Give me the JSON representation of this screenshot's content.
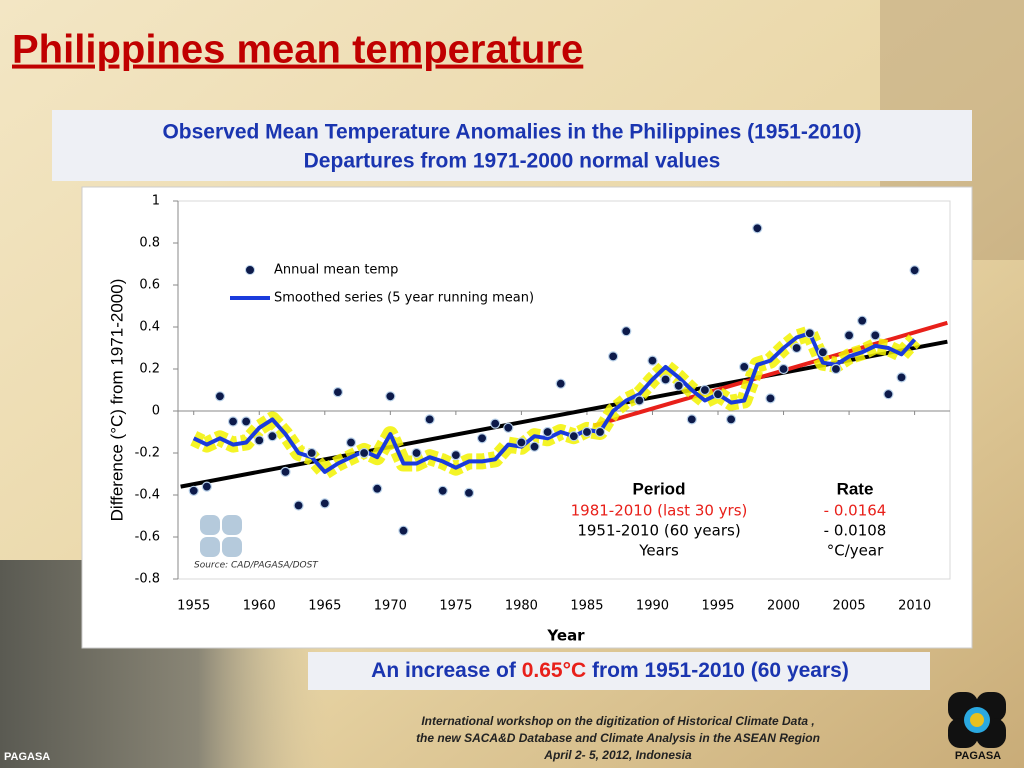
{
  "slide": {
    "title": "Philippines mean temperature",
    "box_title": [
      "Observed Mean Temperature Anomalies in the Philippines (1951-2010)",
      "Departures from 1971-2000 normal values"
    ],
    "conclusion": {
      "before": "An increase of",
      "highlight": "0.65°C",
      "after": "from 1951-2010 (60 years)"
    },
    "footer": [
      "International workshop on the digitization of Historical Climate Data ,",
      "the new SACA&D Database and Climate Analysis  in the ASEAN Region",
      "April 2- 5, 2012, Indonesia"
    ],
    "logo_left": "PAGASA",
    "logo_right": "PAGASA"
  },
  "chart_data": {
    "type": "scatter",
    "x_label": "Year",
    "y_label": "Difference (°C) from 1971-2000)",
    "source": "Source: CAD/PAGASA/DOST",
    "x": [
      1955,
      1956,
      1957,
      1958,
      1959,
      1960,
      1961,
      1962,
      1963,
      1964,
      1965,
      1966,
      1967,
      1968,
      1969,
      1970,
      1971,
      1972,
      1973,
      1974,
      1975,
      1976,
      1977,
      1978,
      1979,
      1980,
      1981,
      1982,
      1983,
      1984,
      1985,
      1986,
      1987,
      1988,
      1989,
      1990,
      1991,
      1992,
      1993,
      1994,
      1995,
      1996,
      1997,
      1998,
      1999,
      2000,
      2001,
      2002,
      2003,
      2004,
      2005,
      2006,
      2007,
      2008,
      2009,
      2010
    ],
    "series": [
      {
        "name": "Annual mean temp",
        "color": "#0d1a4a",
        "values": [
          -0.38,
          -0.36,
          0.07,
          -0.05,
          -0.05,
          -0.14,
          -0.12,
          -0.29,
          -0.45,
          -0.2,
          -0.44,
          0.09,
          -0.15,
          -0.2,
          -0.37,
          0.07,
          -0.57,
          -0.2,
          -0.04,
          -0.38,
          -0.21,
          -0.39,
          -0.13,
          -0.06,
          -0.08,
          -0.15,
          -0.17,
          -0.1,
          0.13,
          -0.12,
          -0.1,
          -0.1,
          0.26,
          0.38,
          0.05,
          0.24,
          0.15,
          0.12,
          -0.04,
          0.1,
          0.08,
          -0.04,
          0.21,
          0.87,
          0.06,
          0.2,
          0.3,
          0.37,
          0.28,
          0.2,
          0.36,
          0.43,
          0.36,
          0.08,
          0.16,
          0.67
        ]
      },
      {
        "name": "Smoothed series  (5 year running mean)",
        "color": "#1a3bdc",
        "glow": "#f2f200",
        "values": [
          -0.13,
          -0.16,
          -0.13,
          -0.16,
          -0.15,
          -0.08,
          -0.04,
          -0.11,
          -0.2,
          -0.22,
          -0.29,
          -0.25,
          -0.22,
          -0.19,
          -0.22,
          -0.11,
          -0.25,
          -0.25,
          -0.22,
          -0.24,
          -0.27,
          -0.24,
          -0.24,
          -0.23,
          -0.16,
          -0.17,
          -0.12,
          -0.13,
          -0.1,
          -0.12,
          -0.09,
          -0.1,
          0.0,
          0.05,
          0.08,
          0.15,
          0.21,
          0.16,
          0.1,
          0.05,
          0.08,
          0.04,
          0.05,
          0.22,
          0.24,
          0.3,
          0.35,
          0.37,
          0.23,
          0.22,
          0.26,
          0.28,
          0.31,
          0.3,
          0.27,
          0.34
        ]
      }
    ],
    "trend_lines": [
      {
        "color": "#000000",
        "x": [
          1954,
          2012.5
        ],
        "values": [
          -0.36,
          0.33
        ]
      },
      {
        "color": "#e8201a",
        "x": [
          1985.5,
          2012.5
        ],
        "values": [
          -0.07,
          0.42
        ]
      }
    ],
    "rate_table": {
      "headers": [
        "Period",
        "Rate"
      ],
      "rows": [
        [
          "1981-2010  (last 30  yrs)",
          "- 0.0164"
        ],
        [
          "1951-2010  (60  years)",
          "-  0.0108"
        ],
        [
          "Years",
          "°C/year"
        ]
      ],
      "highlight_color": "#e8201a"
    },
    "xlim": [
      1953.8,
      2012.7
    ],
    "ylim": [
      -0.8,
      1
    ],
    "xticks": [
      1955,
      1960,
      1965,
      1970,
      1975,
      1980,
      1985,
      1990,
      1995,
      2000,
      2005,
      2010
    ],
    "yticks": [
      1,
      0.8,
      0.6,
      0.4,
      0.2,
      0,
      -0.2,
      -0.4,
      -0.6,
      -0.8
    ],
    "grid": false
  }
}
